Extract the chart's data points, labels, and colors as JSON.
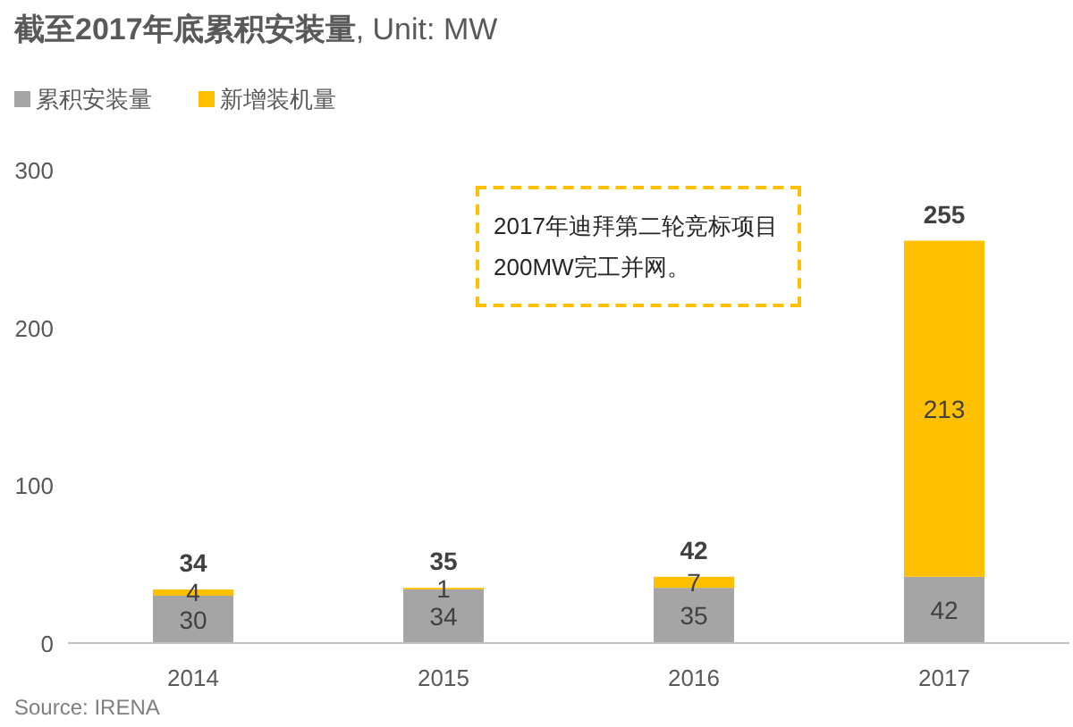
{
  "chart_data": {
    "type": "bar",
    "title": "**截至2017年底累积安装量**, Unit: MW",
    "categories": [
      "2014",
      "2015",
      "2016",
      "2017"
    ],
    "series": [
      {
        "name": "累积安装量",
        "color": "#a5a5a5",
        "values": [
          30,
          34,
          35,
          42
        ]
      },
      {
        "name": "新增装机量",
        "color": "#ffc000",
        "values": [
          4,
          1,
          7,
          213
        ]
      }
    ],
    "stacked": true,
    "data_labels": true,
    "totals": [
      "34",
      "35",
      "42",
      "255"
    ],
    "ylim": [
      0,
      300
    ],
    "yticks": [
      0,
      100,
      200,
      300
    ],
    "legend": "top left",
    "annotations": [
      "2017年迪拜第二轮竞标项目200MW完工并网。",
      "Source: IRENA"
    ]
  }
}
